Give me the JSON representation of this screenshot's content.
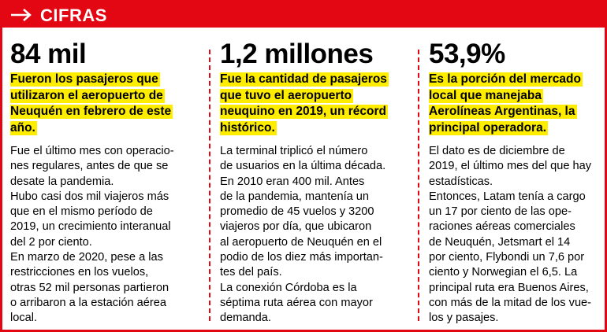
{
  "header": {
    "title": "CIFRAS"
  },
  "columns": [
    {
      "figure": "84 mil",
      "highlight": [
        "Fueron los pasajeros que",
        "utilizaron el aeropuerto de",
        "Neuquén en febrero de este",
        "año."
      ],
      "body": [
        "Fue el último mes con operacio-",
        "nes regulares, antes de que se",
        "desate la pandemia.",
        "Hubo casi dos mil viajeros más",
        "que en el mismo período de",
        "2019, un crecimiento interanual",
        "del 2 por ciento.",
        "En marzo de 2020, pese a las",
        "restricciones en los vuelos,",
        "otras 52 mil personas partieron",
        "o arribaron a la estación aérea",
        "local."
      ]
    },
    {
      "figure": "1,2 millones",
      "highlight": [
        "Fue la cantidad de pasajeros",
        "que tuvo el aeropuerto",
        "neuquino en 2019, un récord",
        "histórico."
      ],
      "body": [
        "La terminal triplicó el número",
        "de usuarios en la última década.",
        "En 2010 eran 400 mil. Antes",
        "de la pandemia, mantenía un",
        "promedio de 45 vuelos y 3200",
        "viajeros por día, que ubicaron",
        "al aeropuerto de Neuquén en el",
        "podio de los diez más importan-",
        "tes del país.",
        "La conexión Córdoba es la",
        "séptima ruta aérea con mayor",
        "demanda."
      ]
    },
    {
      "figure": "53,9%",
      "highlight": [
        "Es la porción del mercado",
        "local que manejaba",
        "Aerolíneas Argentinas, la",
        "principal operadora."
      ],
      "body": [
        "El dato es de diciembre de",
        "2019, el último mes del que hay",
        "estadísticas.",
        "Entonces, Latam tenía a cargo",
        "un 17 por ciento de las ope-",
        "raciones aéreas comerciales",
        "de Neuquén, Jetsmart el 14",
        "por ciento, Flybondi un 7,6 por",
        "ciento y Norwegian el 6,5. La",
        "principal ruta era Buenos Aires,",
        "con más de la mitad de los vue-",
        "los y pasajes."
      ]
    }
  ]
}
